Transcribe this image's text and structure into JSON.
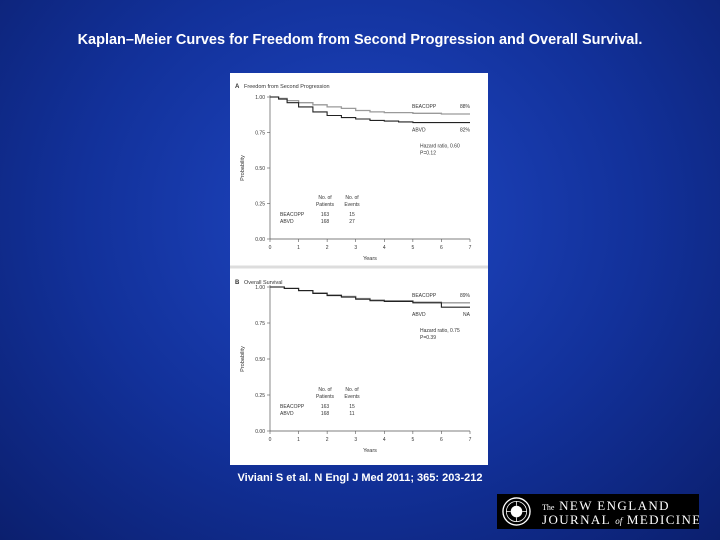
{
  "slide": {
    "title": "Kaplan–Meier Curves for Freedom from Second Progression and Overall Survival.",
    "citation": "Viviani S et al. N Engl J Med 2011; 365: 203-212"
  },
  "logo": {
    "line1_prefix": "The",
    "line1": "NEW ENGLAND",
    "line2a": "JOURNAL",
    "line2_of": "of",
    "line2b": "MEDICINE"
  },
  "colors": {
    "background": "#12319a",
    "beacopp_line": "#9a9a9a",
    "abvd_line": "#222222"
  },
  "chart_data": [
    {
      "type": "line",
      "panel": "A",
      "title": "Freedom from Second Progression",
      "xlabel": "Years",
      "ylabel": "Probability",
      "xlim": [
        0,
        7
      ],
      "ylim": [
        0,
        1.0
      ],
      "x_ticks": [
        "0",
        "1",
        "2",
        "3",
        "4",
        "5",
        "6",
        "7"
      ],
      "y_ticks": [
        "0.00",
        "0.25",
        "0.50",
        "0.75",
        "1.00"
      ],
      "series": [
        {
          "name": "BEACOPP",
          "end_label": "88%",
          "points": [
            [
              0,
              1.0
            ],
            [
              0.3,
              0.99
            ],
            [
              0.6,
              0.975
            ],
            [
              1.0,
              0.96
            ],
            [
              1.5,
              0.945
            ],
            [
              2.0,
              0.93
            ],
            [
              2.5,
              0.92
            ],
            [
              3.0,
              0.905
            ],
            [
              3.5,
              0.895
            ],
            [
              4.0,
              0.89
            ],
            [
              5.0,
              0.885
            ],
            [
              6.0,
              0.88
            ],
            [
              7.0,
              0.88
            ]
          ]
        },
        {
          "name": "ABVD",
          "end_label": "82%",
          "points": [
            [
              0,
              1.0
            ],
            [
              0.3,
              0.985
            ],
            [
              0.6,
              0.96
            ],
            [
              1.0,
              0.93
            ],
            [
              1.5,
              0.895
            ],
            [
              2.0,
              0.87
            ],
            [
              2.5,
              0.855
            ],
            [
              3.0,
              0.845
            ],
            [
              3.5,
              0.835
            ],
            [
              4.0,
              0.83
            ],
            [
              4.5,
              0.825
            ],
            [
              5.0,
              0.82
            ],
            [
              6.0,
              0.82
            ],
            [
              7.0,
              0.82
            ]
          ]
        }
      ],
      "annotation": [
        "Hazard ratio, 0.60",
        "P=0.12"
      ],
      "risk_table": {
        "headers": [
          "No. of Patients",
          "No. of Events"
        ],
        "rows": [
          {
            "group": "BEACOPP",
            "patients": "163",
            "events": "15"
          },
          {
            "group": "ABVD",
            "patients": "168",
            "events": "27"
          }
        ]
      }
    },
    {
      "type": "line",
      "panel": "B",
      "title": "Overall Survival",
      "xlabel": "Years",
      "ylabel": "Probability",
      "xlim": [
        0,
        7
      ],
      "ylim": [
        0,
        1.0
      ],
      "x_ticks": [
        "0",
        "1",
        "2",
        "3",
        "4",
        "5",
        "6",
        "7"
      ],
      "y_ticks": [
        "0.00",
        "0.25",
        "0.50",
        "0.75",
        "1.00"
      ],
      "series": [
        {
          "name": "BEACOPP",
          "end_label": "89%",
          "points": [
            [
              0,
              1.0
            ],
            [
              0.5,
              0.99
            ],
            [
              1.0,
              0.975
            ],
            [
              1.5,
              0.96
            ],
            [
              2.0,
              0.945
            ],
            [
              2.5,
              0.935
            ],
            [
              3.0,
              0.92
            ],
            [
              3.5,
              0.91
            ],
            [
              4.0,
              0.905
            ],
            [
              5.0,
              0.895
            ],
            [
              6.0,
              0.89
            ],
            [
              7.0,
              0.89
            ]
          ]
        },
        {
          "name": "ABVD",
          "end_label": "NA",
          "points": [
            [
              0,
              1.0
            ],
            [
              0.5,
              0.99
            ],
            [
              1.0,
              0.975
            ],
            [
              1.5,
              0.955
            ],
            [
              2.0,
              0.94
            ],
            [
              2.5,
              0.93
            ],
            [
              3.0,
              0.915
            ],
            [
              3.5,
              0.905
            ],
            [
              4.0,
              0.9
            ],
            [
              5.0,
              0.89
            ],
            [
              6.0,
              0.86
            ],
            [
              7.0,
              0.86
            ]
          ]
        }
      ],
      "annotation": [
        "Hazard ratio, 0.75",
        "P=0.39"
      ],
      "risk_table": {
        "headers": [
          "No. of Patients",
          "No. of Events"
        ],
        "rows": [
          {
            "group": "BEACOPP",
            "patients": "163",
            "events": "15"
          },
          {
            "group": "ABVD",
            "patients": "168",
            "events": "11"
          }
        ]
      }
    }
  ]
}
